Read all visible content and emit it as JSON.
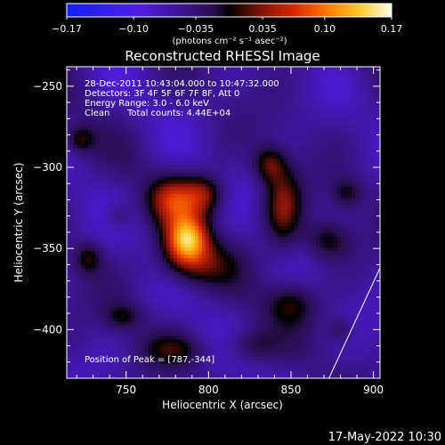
{
  "chart_data": {
    "type": "heatmap",
    "title": "Reconstructed RHESSI Image",
    "xlabel": "Heliocentric X (arcsec)",
    "ylabel": "Heliocentric Y (arcsec)",
    "xlim": [
      714,
      904
    ],
    "ylim": [
      -430,
      -238
    ],
    "x_ticks": [
      750,
      800,
      850,
      900
    ],
    "y_ticks": [
      -250,
      -300,
      -350,
      -400
    ],
    "x_tick_labels": [
      "750",
      "800",
      "850",
      "900"
    ],
    "y_tick_labels": [
      "−250",
      "−300",
      "−350",
      "−400"
    ],
    "colorbar": {
      "range": [
        -0.17,
        0.17
      ],
      "ticks": [
        -0.17,
        -0.1,
        -0.035,
        0.035,
        0.1,
        0.17
      ],
      "tick_labels": [
        "−0.17",
        "−0.10",
        "−0.035",
        "0.035",
        "0.10",
        "0.17"
      ],
      "unit_label": "(photons cm⁻² s⁻¹ asec⁻²)"
    },
    "annotations": {
      "time": "28-Dec-2011 10:43:04.000 to 10:47:32.000",
      "detectors": "Detectors: 3F 4F 5F 6F 7F 8F, Att 0",
      "energy": "Energy Range: 3.0 - 6.0 keV",
      "method": "Clean",
      "counts": "Total counts: 4.44E+04",
      "peak": "Position of Peak = [787,-344]"
    },
    "peak": [
      787,
      -344
    ],
    "sources": [
      {
        "x": 787,
        "y": -344,
        "sx": 9,
        "sy": 10,
        "amp": 0.17
      },
      {
        "x": 778,
        "y": -320,
        "sx": 10,
        "sy": 10,
        "amp": 0.09
      },
      {
        "x": 797,
        "y": -317,
        "sx": 9,
        "sy": 9,
        "amp": 0.09
      },
      {
        "x": 790,
        "y": -360,
        "sx": 16,
        "sy": 10,
        "amp": 0.07
      },
      {
        "x": 845,
        "y": -325,
        "sx": 8,
        "sy": 17,
        "amp": 0.085
      },
      {
        "x": 837,
        "y": -298,
        "sx": 7,
        "sy": 8,
        "amp": 0.07
      },
      {
        "x": 872,
        "y": -345,
        "sx": 10,
        "sy": 9,
        "amp": 0.06
      },
      {
        "x": 884,
        "y": -316,
        "sx": 7,
        "sy": 7,
        "amp": 0.05
      },
      {
        "x": 850,
        "y": -384,
        "sx": 11,
        "sy": 9,
        "amp": 0.055
      },
      {
        "x": 825,
        "y": -410,
        "sx": 11,
        "sy": 8,
        "amp": 0.05
      },
      {
        "x": 780,
        "y": -412,
        "sx": 14,
        "sy": 7,
        "amp": 0.045
      },
      {
        "x": 722,
        "y": -283,
        "sx": 6,
        "sy": 6,
        "amp": 0.06
      },
      {
        "x": 727,
        "y": -356,
        "sx": 6,
        "sy": 7,
        "amp": 0.06
      },
      {
        "x": 748,
        "y": -392,
        "sx": 8,
        "sy": 6,
        "amp": 0.05
      },
      {
        "x": 745,
        "y": -330,
        "sx": 6,
        "sy": 6,
        "amp": 0.035
      },
      {
        "x": 880,
        "y": -400,
        "sx": 6,
        "sy": 6,
        "amp": 0.04
      }
    ],
    "limb_line": [
      [
        873,
        -430
      ],
      [
        904,
        -362
      ]
    ]
  },
  "footer": {
    "date": "17-May-2022 10:30"
  }
}
